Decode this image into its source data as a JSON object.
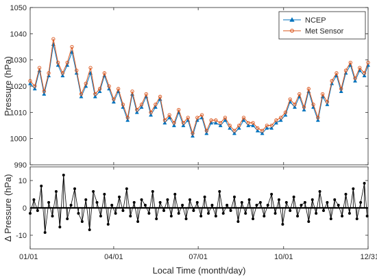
{
  "chart_data": [
    {
      "type": "line",
      "panel": "top",
      "ylabel": "Pressure (hPa)",
      "xlabel": "",
      "ylim": [
        990,
        1050
      ],
      "yticks": [
        990,
        1000,
        1010,
        1020,
        1030,
        1040,
        1050
      ],
      "xlim": [
        1,
        365
      ],
      "grid": false,
      "legend": "top-right",
      "x": [
        1,
        6,
        11,
        16,
        21,
        26,
        31,
        36,
        41,
        46,
        51,
        56,
        61,
        66,
        71,
        76,
        81,
        86,
        91,
        96,
        101,
        106,
        111,
        116,
        121,
        126,
        131,
        136,
        141,
        146,
        151,
        156,
        161,
        166,
        171,
        176,
        181,
        186,
        191,
        196,
        201,
        206,
        211,
        216,
        221,
        226,
        231,
        236,
        241,
        246,
        251,
        256,
        261,
        266,
        271,
        276,
        281,
        286,
        291,
        296,
        301,
        306,
        311,
        316,
        321,
        326,
        331,
        336,
        341,
        346,
        351,
        356,
        361,
        365
      ],
      "series": [
        {
          "name": "NCEP",
          "color": "#0072BD",
          "marker": "triangle",
          "values": [
            1021,
            1019,
            1026,
            1017,
            1024,
            1036,
            1028,
            1024,
            1028,
            1033,
            1025,
            1016,
            1020,
            1025,
            1016,
            1018,
            1024,
            1019,
            1014,
            1018,
            1012,
            1007,
            1017,
            1010,
            1012,
            1016,
            1009,
            1012,
            1015,
            1006,
            1008,
            1005,
            1010,
            1005,
            1007,
            1001,
            1007,
            1008,
            1002,
            1006,
            1006,
            1005,
            1007,
            1004,
            1002,
            1004,
            1007,
            1005,
            1005,
            1003,
            1002,
            1004,
            1004,
            1006,
            1007,
            1009,
            1014,
            1012,
            1016,
            1011,
            1018,
            1012,
            1007,
            1016,
            1013,
            1021,
            1024,
            1018,
            1025,
            1028,
            1022,
            1026,
            1024,
            1028
          ]
        },
        {
          "name": "Met Sensor",
          "color": "#D95319",
          "marker": "circle",
          "values": [
            1022,
            1020,
            1027,
            1018,
            1025,
            1038,
            1029,
            1025,
            1029,
            1035,
            1026,
            1017,
            1021,
            1027,
            1017,
            1019,
            1025,
            1020,
            1015,
            1019,
            1013,
            1008,
            1018,
            1011,
            1013,
            1017,
            1010,
            1013,
            1016,
            1007,
            1009,
            1006,
            1011,
            1006,
            1008,
            1002,
            1008,
            1009,
            1003,
            1007,
            1007,
            1006,
            1008,
            1005,
            1003,
            1005,
            1008,
            1006,
            1006,
            1004,
            1003,
            1005,
            1005,
            1007,
            1008,
            1010,
            1015,
            1013,
            1017,
            1012,
            1019,
            1013,
            1008,
            1017,
            1014,
            1022,
            1025,
            1019,
            1026,
            1029,
            1023,
            1027,
            1025,
            1029
          ]
        }
      ]
    },
    {
      "type": "scatter",
      "panel": "bottom",
      "ylabel": "Δ Pressure (hPa)",
      "xlabel": "Local Time (month/day)",
      "ylim": [
        -15,
        15
      ],
      "yticks": [
        -10,
        0,
        10
      ],
      "xlim": [
        1,
        365
      ],
      "xticks": [
        1,
        91,
        182,
        274,
        365
      ],
      "xticklabels": [
        "01/01",
        "04/01",
        "07/01",
        "10/01",
        "12/31"
      ],
      "grid": false,
      "color": "#000000",
      "x": [
        1,
        5,
        9,
        13,
        17,
        21,
        25,
        29,
        33,
        37,
        41,
        45,
        49,
        53,
        57,
        61,
        65,
        69,
        73,
        77,
        81,
        85,
        89,
        93,
        97,
        101,
        105,
        109,
        113,
        117,
        121,
        125,
        129,
        133,
        137,
        141,
        145,
        149,
        153,
        157,
        161,
        165,
        169,
        173,
        177,
        181,
        185,
        189,
        193,
        197,
        201,
        205,
        209,
        213,
        217,
        221,
        225,
        229,
        233,
        237,
        241,
        245,
        249,
        253,
        257,
        261,
        265,
        269,
        273,
        277,
        281,
        285,
        289,
        293,
        297,
        301,
        305,
        309,
        313,
        317,
        321,
        325,
        329,
        333,
        337,
        341,
        345,
        349,
        353,
        357,
        361,
        364
      ],
      "values": [
        -2,
        3,
        -1,
        8,
        -9,
        2,
        -3,
        6,
        -7,
        12,
        -4,
        1,
        7,
        -2,
        -5,
        3,
        -8,
        6,
        2,
        -3,
        5,
        -6,
        1,
        -2,
        4,
        -1,
        7,
        -3,
        2,
        -5,
        3,
        1,
        -2,
        6,
        -4,
        2,
        -1,
        3,
        -3,
        5,
        -2,
        1,
        -4,
        3,
        -1,
        2,
        -3,
        4,
        -2,
        1,
        -3,
        6,
        -2,
        1,
        -1,
        4,
        -5,
        2,
        -2,
        3,
        -4,
        1,
        2,
        -3,
        1,
        5,
        -2,
        3,
        -6,
        2,
        -1,
        4,
        -3,
        1,
        2,
        -5,
        3,
        -2,
        6,
        -1,
        2,
        -4,
        3,
        1,
        -3,
        5,
        -2,
        7,
        -4,
        2,
        9,
        -3
      ]
    }
  ]
}
